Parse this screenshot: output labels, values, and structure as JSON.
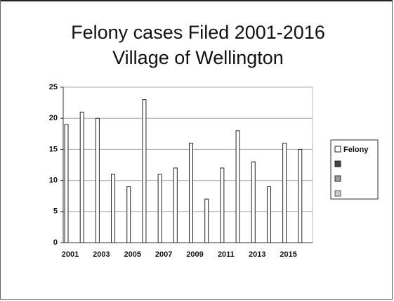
{
  "chart_data": {
    "type": "bar",
    "title": [
      "Felony cases Filed 2001-2016",
      "Village of Wellington"
    ],
    "categories": [
      "2001",
      null,
      "2003",
      null,
      "2005",
      null,
      "2007",
      null,
      "2009",
      null,
      "2011",
      null,
      "2013",
      null,
      "2015",
      null
    ],
    "series": [
      {
        "name": "Felony",
        "color": "#ffffff",
        "values": [
          19,
          21,
          20,
          11,
          9,
          23,
          11,
          12,
          16,
          7,
          12,
          18,
          13,
          9,
          16,
          15
        ]
      }
    ],
    "ylim": [
      0,
      25
    ],
    "yticks": [
      0,
      5,
      10,
      15,
      20,
      25
    ],
    "grid": true,
    "legend": "right"
  }
}
